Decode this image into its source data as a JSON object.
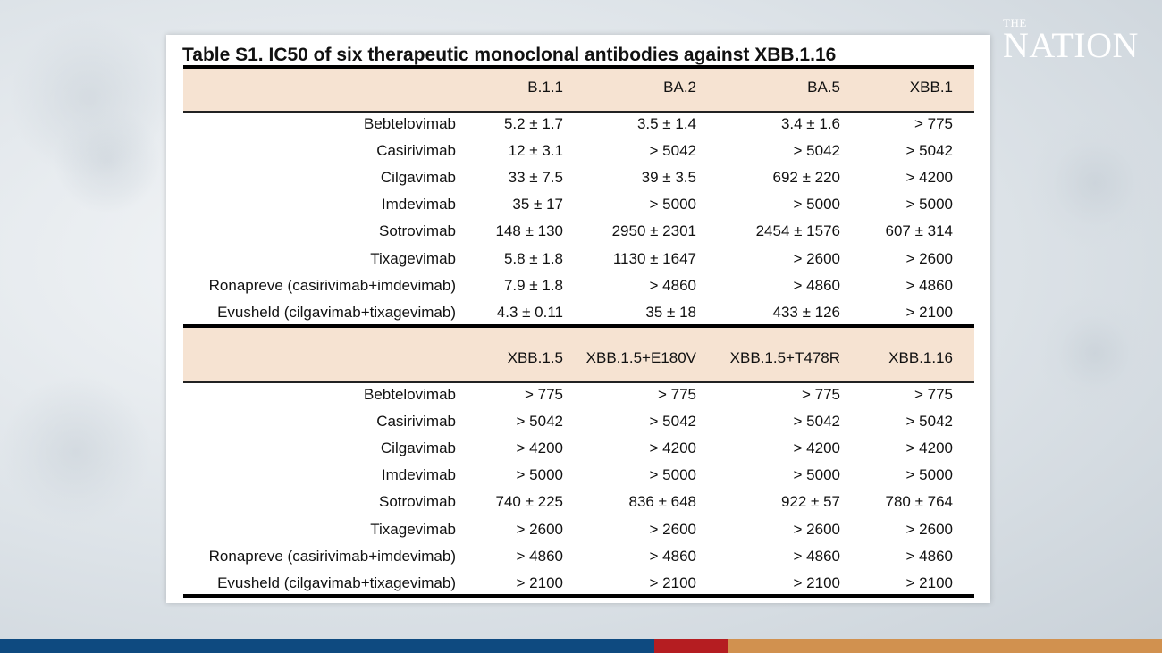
{
  "branding": {
    "logo_top": "THE",
    "logo_main": "NATION"
  },
  "colors": {
    "bar_blue": "#0e4a80",
    "bar_red": "#b51d21",
    "bar_tan": "#d1914f",
    "header_fill": "#f6e3d2"
  },
  "table": {
    "title": "Table S1. IC50 of six therapeutic monoclonal antibodies against XBB.1.16",
    "sections": [
      {
        "columns": [
          "B.1.1",
          "BA.2",
          "BA.5",
          "XBB.1"
        ],
        "rows": [
          {
            "antibody": "Bebtelovimab",
            "values": [
              "5.2 ± 1.7",
              "3.5 ± 1.4",
              "3.4 ± 1.6",
              "> 775"
            ]
          },
          {
            "antibody": "Casirivimab",
            "values": [
              "12 ± 3.1",
              "> 5042",
              "> 5042",
              "> 5042"
            ]
          },
          {
            "antibody": "Cilgavimab",
            "values": [
              "33 ± 7.5",
              "39 ± 3.5",
              "692 ± 220",
              "> 4200"
            ]
          },
          {
            "antibody": "Imdevimab",
            "values": [
              "35 ± 17",
              "> 5000",
              "> 5000",
              "> 5000"
            ]
          },
          {
            "antibody": "Sotrovimab",
            "values": [
              "148 ± 130",
              "2950 ± 2301",
              "2454 ± 1576",
              "607 ± 314"
            ]
          },
          {
            "antibody": "Tixagevimab",
            "values": [
              "5.8 ± 1.8",
              "1130 ± 1647",
              "> 2600",
              "> 2600"
            ]
          },
          {
            "antibody": "Ronapreve (casirivimab+imdevimab)",
            "values": [
              "7.9 ± 1.8",
              "> 4860",
              "> 4860",
              "> 4860"
            ]
          },
          {
            "antibody": "Evusheld (cilgavimab+tixagevimab)",
            "values": [
              "4.3 ± 0.11",
              "35  ± 18",
              "433 ± 126",
              "> 2100"
            ]
          }
        ]
      },
      {
        "columns": [
          "XBB.1.5",
          "XBB.1.5+E180V",
          "XBB.1.5+T478R",
          "XBB.1.16"
        ],
        "rows": [
          {
            "antibody": "Bebtelovimab",
            "values": [
              "> 775",
              "> 775",
              "> 775",
              "> 775"
            ]
          },
          {
            "antibody": "Casirivimab",
            "values": [
              "> 5042",
              "> 5042",
              "> 5042",
              "> 5042"
            ]
          },
          {
            "antibody": "Cilgavimab",
            "values": [
              "> 4200",
              "> 4200",
              "> 4200",
              "> 4200"
            ]
          },
          {
            "antibody": "Imdevimab",
            "values": [
              "> 5000",
              "> 5000",
              "> 5000",
              "> 5000"
            ]
          },
          {
            "antibody": "Sotrovimab",
            "values": [
              "740 ± 225",
              "836 ± 648",
              "922 ± 57",
              "780 ± 764"
            ]
          },
          {
            "antibody": "Tixagevimab",
            "values": [
              "> 2600",
              "> 2600",
              "> 2600",
              "> 2600"
            ]
          },
          {
            "antibody": "Ronapreve (casirivimab+imdevimab)",
            "values": [
              "> 4860",
              "> 4860",
              "> 4860",
              "> 4860"
            ]
          },
          {
            "antibody": "Evusheld (cilgavimab+tixagevimab)",
            "values": [
              "> 2100",
              "> 2100",
              "> 2100",
              "> 2100"
            ]
          }
        ]
      }
    ]
  }
}
